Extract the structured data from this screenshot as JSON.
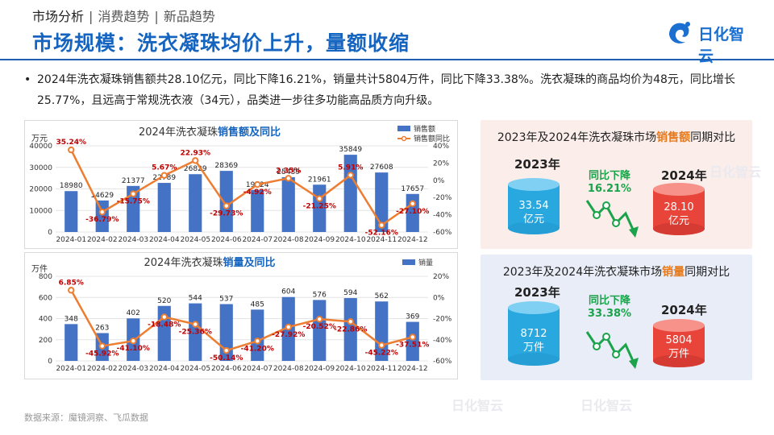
{
  "breadcrumb": {
    "section": "市场分析",
    "item1": "消费趋势",
    "item2": "新品趋势"
  },
  "headline": "市场规模：洗衣凝珠均价上升，量额收缩",
  "logo": {
    "text": "日化智云"
  },
  "summary": "2024年洗衣凝珠销售额共28.10亿元，同比下降16.21%，销量共计5804万件，同比下降33.38%。洗衣凝珠的商品均价为48元，同比增长25.77%，且远高于常规洗衣液（34元），品类进一步往多功能高品质方向升级。",
  "source": "数据来源：魔镜洞察、飞瓜数据",
  "watermark": "日化智云",
  "colors": {
    "bar": "#4472c4",
    "line": "#ed7d31",
    "title_blue": "#1565c0",
    "neg_label": "#c00000",
    "panel1_bg": "#fbeeea",
    "panel2_bg": "#e8edf7",
    "cyl_blue": "#29a8e0",
    "cyl_red": "#e8443a",
    "delta_green": "#1aa34a"
  },
  "chart_data": [
    {
      "type": "bar",
      "title_prefix": "2024年洗衣凝珠",
      "title_highlight": "销售额及同比",
      "y_unit": "万元",
      "ylim": [
        0,
        40000
      ],
      "yticks": [
        "0",
        "10000",
        "20000",
        "30000",
        "40000"
      ],
      "y2lim": [
        -60,
        40
      ],
      "y2ticks": [
        "40%",
        "20%",
        "0%",
        "-20%",
        "-40%",
        "-60%"
      ],
      "categories": [
        "2024-01",
        "2024-02",
        "2024-03",
        "2024-04",
        "2024-05",
        "2024-06",
        "2024-07",
        "2024-08",
        "2024-09",
        "2024-10",
        "2024-11",
        "2024-12"
      ],
      "series": [
        {
          "name": "销售额",
          "kind": "bar",
          "values": [
            18980,
            14629,
            21377,
            22789,
            26829,
            28369,
            19524,
            25439,
            21961,
            35849,
            27608,
            17657
          ],
          "labels": [
            "18980",
            "14629",
            "21377",
            "22789",
            "26829",
            "28369",
            "19524",
            "25439",
            "21961",
            "35849",
            "27608",
            "17657"
          ]
        },
        {
          "name": "销售额同比",
          "kind": "line",
          "axis": "right",
          "values": [
            35.24,
            -36.79,
            -15.75,
            5.67,
            22.93,
            -29.73,
            -4.92,
            2.35,
            -21.25,
            5.91,
            -52.16,
            -27.1
          ],
          "labels": [
            "35.24%",
            "-36.79%",
            "-15.75%",
            "5.67%",
            "22.93%",
            "-29.73%",
            "-4.92%",
            "2.35%",
            "-21.25%",
            "5.91%",
            "-52.16%",
            "-27.10%"
          ]
        }
      ]
    },
    {
      "type": "bar",
      "title_prefix": "2024年洗衣凝珠",
      "title_highlight": "销量及同比",
      "y_unit": "万件",
      "ylim": [
        0,
        800
      ],
      "yticks": [
        "0",
        "200",
        "400",
        "600",
        "800"
      ],
      "y2lim": [
        -60,
        20
      ],
      "y2ticks": [
        "20%",
        "0%",
        "-20%",
        "-40%",
        "-60%"
      ],
      "categories": [
        "2024-01",
        "2024-02",
        "2024-03",
        "2024-04",
        "2024-05",
        "2024-06",
        "2024-07",
        "2024-08",
        "2024-09",
        "2024-10",
        "2024-11",
        "2024-12"
      ],
      "series": [
        {
          "name": "销量",
          "kind": "bar",
          "values": [
            348,
            263,
            402,
            520,
            544,
            537,
            485,
            604,
            576,
            594,
            562,
            369
          ],
          "labels": [
            "348",
            "263",
            "402",
            "520",
            "544",
            "537",
            "485",
            "604",
            "576",
            "594",
            "562",
            "369"
          ]
        },
        {
          "name": "",
          "kind": "line",
          "axis": "right",
          "values": [
            6.85,
            -45.92,
            -41.1,
            -18.48,
            -25.36,
            -50.14,
            -41.2,
            -27.92,
            -20.52,
            -22.86,
            -45.22,
            -37.51
          ],
          "labels": [
            "6.85%",
            "-45.92%",
            "-41.10%",
            "-18.48%",
            "-25.36%",
            "-50.14%",
            "-41.20%",
            "-27.92%",
            "-20.52%",
            "-22.86%",
            "-45.22%",
            "-37.51%"
          ]
        }
      ]
    }
  ],
  "panels": [
    {
      "title_prefix": "2023年及2024年洗衣凝珠市场",
      "title_highlight": "销售额",
      "title_suffix": "同期对比",
      "year1": "2023年",
      "year2": "2024年",
      "v1": "33.54",
      "u1": "亿元",
      "v2": "28.10",
      "u2": "亿元",
      "delta_label": "同比下降",
      "delta_value": "16.21%"
    },
    {
      "title_prefix": "2023年及2024年洗衣凝珠市场",
      "title_highlight": "销量",
      "title_suffix": "同期对比",
      "year1": "2023年",
      "year2": "2024年",
      "v1": "8712",
      "u1": "万件",
      "v2": "5804",
      "u2": "万件",
      "delta_label": "同比下降",
      "delta_value": "33.38%"
    }
  ]
}
